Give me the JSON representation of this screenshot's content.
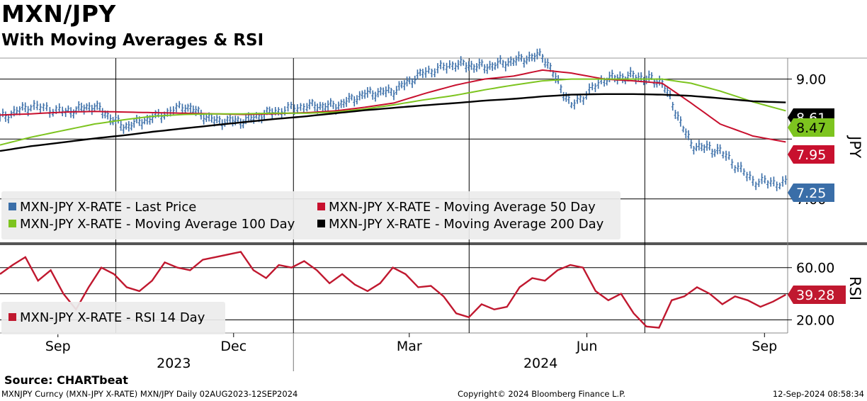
{
  "title": "MXN/JPY",
  "subtitle": "With Moving Averages & RSI",
  "source": "Source: CHARTbeat",
  "footer": {
    "left": "MXNJPY Curncy (MXN-JPY X-RATE) MXN/JPY  Daily 02AUG2023-12SEP2024",
    "middle": "Copyright© 2024 Bloomberg Finance L.P.",
    "right": "12-Sep-2024 08:58:34"
  },
  "colors": {
    "price": "#3a6ea8",
    "ma50": "#c8102e",
    "ma100": "#7dc41f",
    "ma200": "#000000",
    "rsi": "#c0182f"
  },
  "chart_data": [
    {
      "type": "line",
      "panel": "price",
      "ylabel": "JPY",
      "ylim": [
        6.3,
        9.35
      ],
      "yticks": [
        {
          "value": 9.0,
          "label": "9.00"
        },
        {
          "value": 8.0,
          "label": ""
        },
        {
          "value": 7.0,
          "label": "7.00"
        }
      ],
      "x": [
        "2023-08-02",
        "2023-08-18",
        "2023-09-05",
        "2023-09-20",
        "2023-10-05",
        "2023-10-20",
        "2023-11-06",
        "2023-11-21",
        "2023-12-06",
        "2023-12-21",
        "2024-01-08",
        "2024-01-23",
        "2024-02-07",
        "2024-02-22",
        "2024-03-08",
        "2024-03-25",
        "2024-04-09",
        "2024-04-24",
        "2024-05-09",
        "2024-05-24",
        "2024-06-10",
        "2024-06-25",
        "2024-07-10",
        "2024-07-25",
        "2024-08-09",
        "2024-08-26",
        "2024-09-12"
      ],
      "series": [
        {
          "name": "MXN-JPY X-RATE - Last Price",
          "style": "ohlc-bars",
          "values": [
            8.35,
            8.55,
            8.45,
            8.55,
            8.2,
            8.35,
            8.55,
            8.3,
            8.3,
            8.45,
            8.55,
            8.55,
            8.75,
            8.8,
            9.1,
            9.25,
            9.2,
            9.3,
            9.4,
            8.55,
            9.0,
            9.05,
            8.95,
            7.9,
            7.8,
            7.3,
            7.25
          ]
        },
        {
          "name": "MXN-JPY X-RATE - Moving Average 50 Day",
          "values": [
            8.4,
            8.42,
            8.45,
            8.46,
            8.45,
            8.44,
            8.43,
            8.42,
            8.41,
            8.42,
            8.44,
            8.47,
            8.53,
            8.6,
            8.75,
            8.9,
            9.0,
            9.05,
            9.15,
            9.1,
            9.0,
            8.97,
            8.93,
            8.6,
            8.25,
            8.05,
            7.95
          ]
        },
        {
          "name": "MXN-JPY X-RATE - Moving Average 100 Day",
          "values": [
            7.9,
            8.03,
            8.15,
            8.25,
            8.32,
            8.38,
            8.41,
            8.42,
            8.42,
            8.43,
            8.43,
            8.45,
            8.5,
            8.57,
            8.65,
            8.73,
            8.82,
            8.9,
            8.97,
            9.0,
            9.0,
            9.0,
            9.0,
            8.93,
            8.8,
            8.62,
            8.47
          ]
        },
        {
          "name": "MXN-JPY X-RATE - Moving Average 200 Day",
          "values": [
            7.8,
            7.88,
            7.95,
            8.01,
            8.06,
            8.12,
            8.18,
            8.23,
            8.28,
            8.33,
            8.38,
            8.43,
            8.48,
            8.52,
            8.56,
            8.6,
            8.64,
            8.67,
            8.71,
            8.74,
            8.75,
            8.75,
            8.74,
            8.72,
            8.68,
            8.63,
            8.61
          ]
        }
      ],
      "last_labels": [
        {
          "series": "ma200",
          "value": "8.61"
        },
        {
          "series": "ma100",
          "value": "8.47"
        },
        {
          "series": "ma50",
          "value": "7.95"
        },
        {
          "series": "price",
          "value": "7.25"
        }
      ]
    },
    {
      "type": "line",
      "panel": "rsi",
      "ylabel": "RSI",
      "ylim": [
        10,
        75
      ],
      "yticks": [
        {
          "value": 60,
          "label": "60.00"
        },
        {
          "value": 40,
          "label": ""
        },
        {
          "value": 20,
          "label": "20.00"
        }
      ],
      "series": [
        {
          "name": "MXN-JPY X-RATE - RSI 14 Day",
          "values": [
            55,
            62,
            68,
            50,
            58,
            40,
            28,
            45,
            60,
            55,
            45,
            42,
            50,
            64,
            60,
            58,
            66,
            68,
            70,
            72,
            58,
            52,
            62,
            60,
            65,
            58,
            48,
            55,
            47,
            42,
            48,
            60,
            55,
            45,
            46,
            38,
            25,
            22,
            32,
            28,
            30,
            45,
            52,
            50,
            58,
            62,
            60,
            42,
            35,
            40,
            25,
            15,
            14,
            35,
            38,
            45,
            40,
            32,
            38,
            35,
            30,
            34,
            39.28
          ]
        }
      ],
      "last_label": "39.28"
    }
  ],
  "x_axis": {
    "month_ticks": [
      {
        "date": "2023-09-01",
        "label": "Sep"
      },
      {
        "date": "2023-12-01",
        "label": "Dec"
      },
      {
        "date": "2024-03-01",
        "label": "Mar"
      },
      {
        "date": "2024-06-01",
        "label": "Jun"
      },
      {
        "date": "2024-09-01",
        "label": "Sep"
      }
    ],
    "years": [
      "2023",
      "2024"
    ]
  },
  "legends": {
    "price": [
      {
        "label": "MXN-JPY X-RATE - Last Price",
        "color": "#3a6ea8"
      },
      {
        "label": "MXN-JPY X-RATE - Moving Average 50 Day",
        "color": "#c8102e"
      },
      {
        "label": "MXN-JPY X-RATE - Moving Average 100 Day",
        "color": "#7dc41f"
      },
      {
        "label": "MXN-JPY X-RATE - Moving Average 200 Day",
        "color": "#000000"
      }
    ],
    "rsi": [
      {
        "label": "MXN-JPY X-RATE - RSI 14 Day",
        "color": "#c0182f"
      }
    ]
  }
}
